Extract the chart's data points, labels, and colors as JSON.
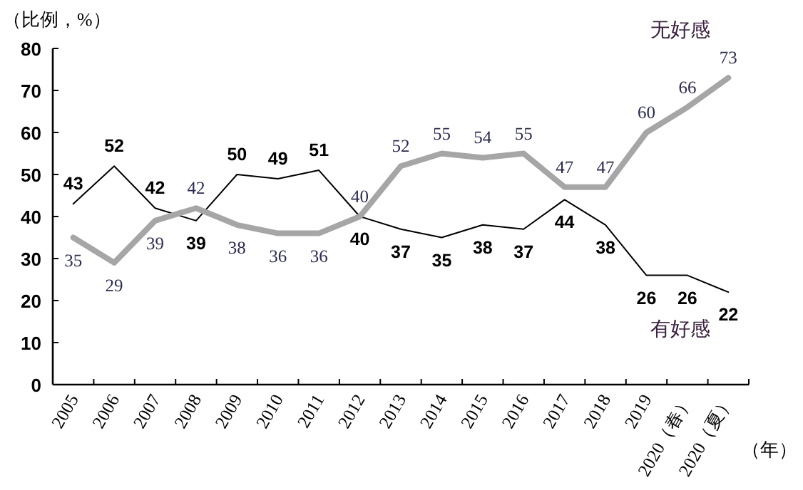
{
  "chart_data": {
    "type": "line",
    "ylabel": "（比例，%）",
    "xlabel": "（年）",
    "categories": [
      "2005",
      "2006",
      "2007",
      "2008",
      "2009",
      "2010",
      "2011",
      "2012",
      "2013",
      "2014",
      "2015",
      "2016",
      "2017",
      "2018",
      "2019",
      "2020（春）",
      "2020（夏）"
    ],
    "ylim": [
      0,
      80
    ],
    "yticks": [
      0,
      10,
      20,
      30,
      40,
      50,
      60,
      70,
      80
    ],
    "data_labels": true,
    "series": [
      {
        "name": "有好感",
        "color": "#000000",
        "values": [
          43,
          52,
          42,
          39,
          50,
          49,
          51,
          40,
          37,
          35,
          38,
          37,
          44,
          38,
          26,
          26,
          22
        ]
      },
      {
        "name": "无好感",
        "color": "#a6a6a6",
        "values": [
          35,
          29,
          39,
          42,
          38,
          36,
          36,
          40,
          52,
          55,
          54,
          55,
          47,
          47,
          60,
          66,
          73
        ]
      }
    ]
  }
}
